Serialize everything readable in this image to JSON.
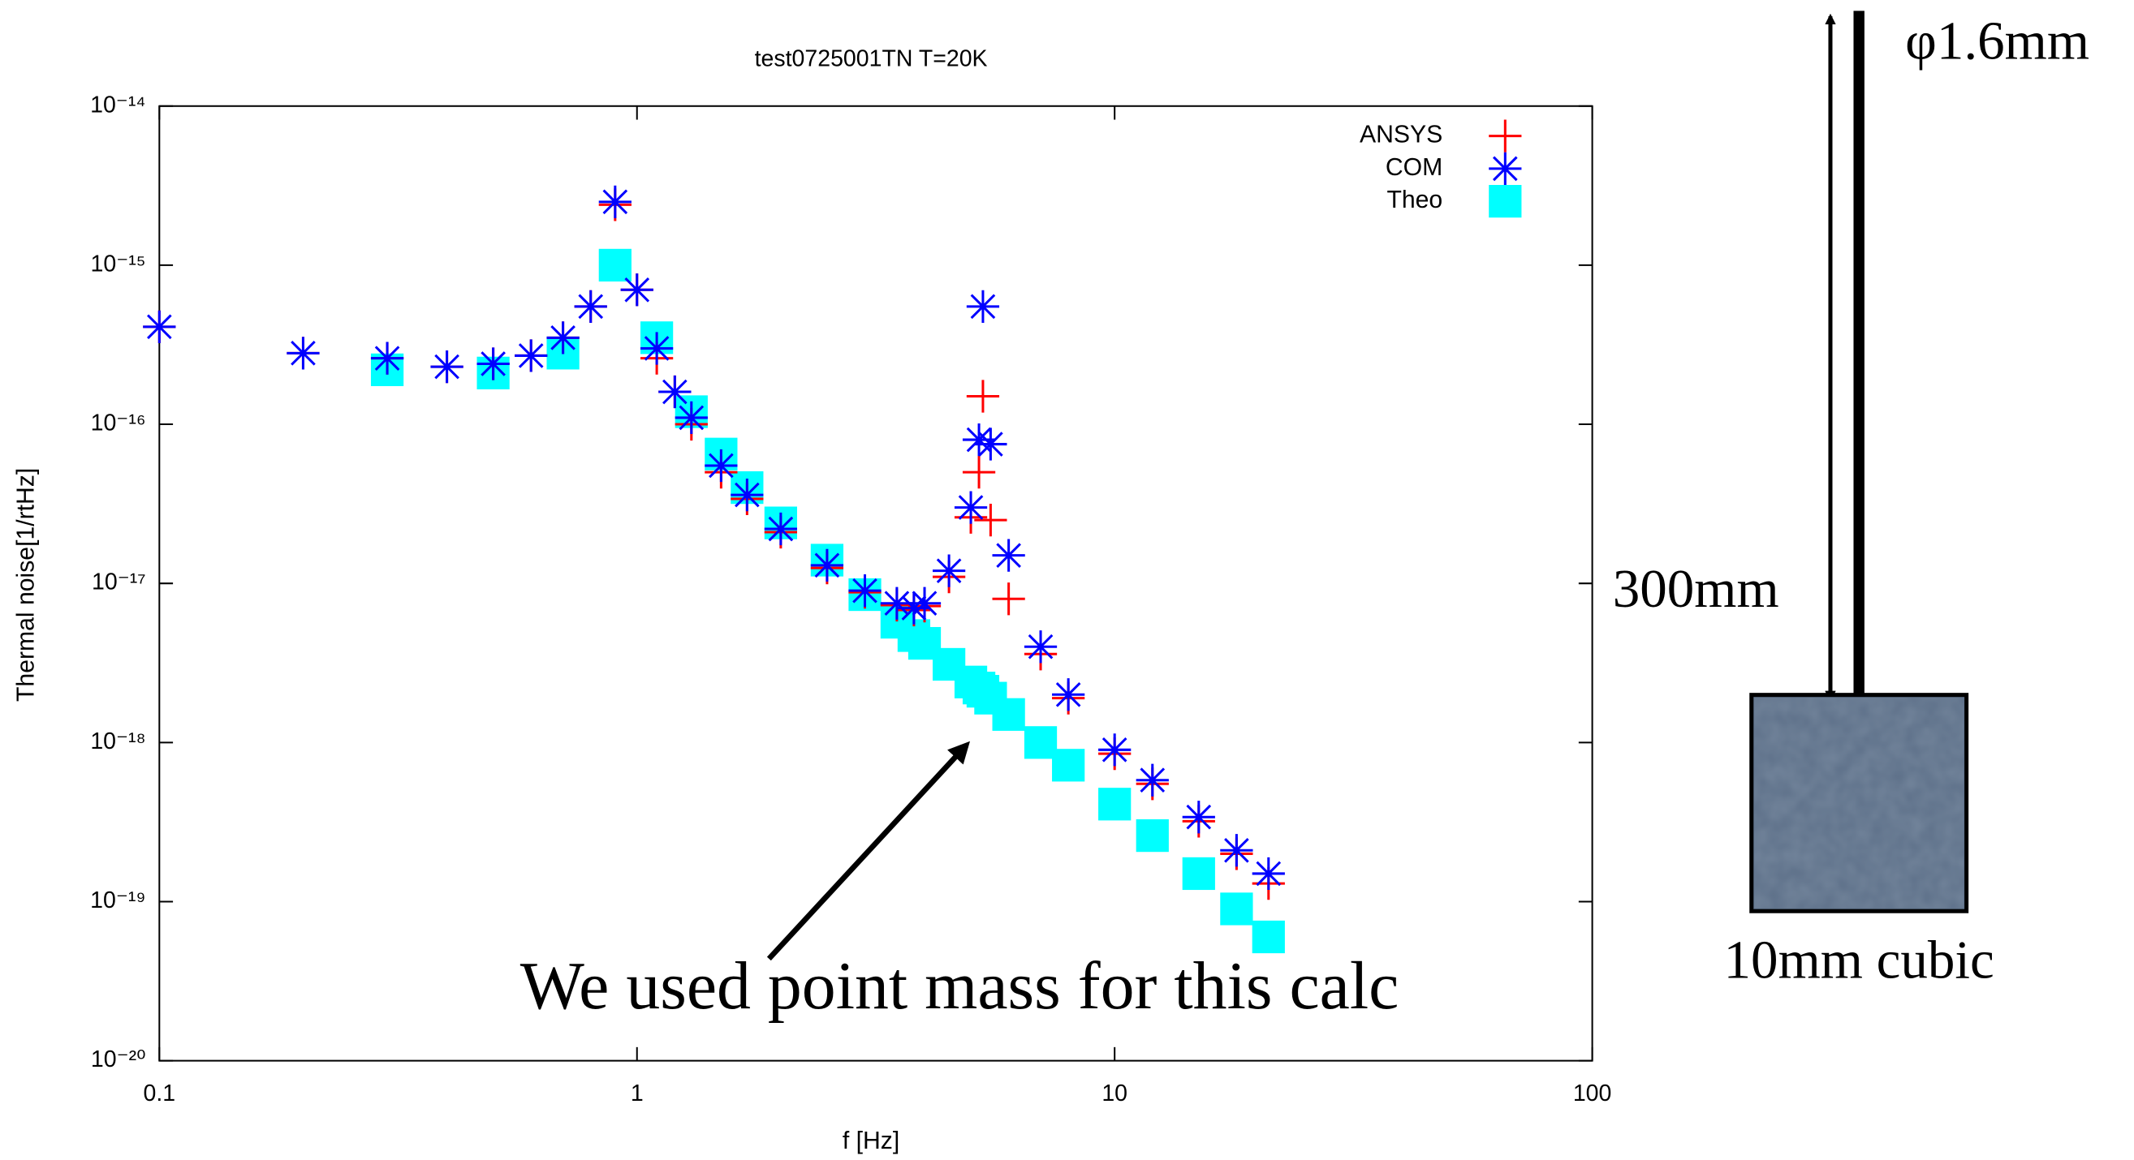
{
  "chart_data": {
    "type": "scatter",
    "title": "test0725001TN T=20K",
    "x_label": "f [Hz]",
    "y_label": "Thermal noise[1/rtHz]",
    "xscale": "log",
    "yscale": "log",
    "xlim": [
      0.1,
      100
    ],
    "ylim": [
      1e-20,
      1e-14
    ],
    "xticks": [
      0.1,
      1,
      10,
      100
    ],
    "yticks": [
      {
        "value": 1e-20,
        "label": "10⁻²⁰"
      },
      {
        "value": 1e-19,
        "label": "10⁻¹⁹"
      },
      {
        "value": 1e-18,
        "label": "10⁻¹⁸"
      },
      {
        "value": 1e-17,
        "label": "10⁻¹⁷"
      },
      {
        "value": 1e-16,
        "label": "10⁻¹⁶"
      },
      {
        "value": 1e-15,
        "label": "10⁻¹⁵"
      },
      {
        "value": 1e-14,
        "label": "10⁻¹⁴"
      }
    ],
    "legend": "top-right",
    "x": [
      0.1,
      0.2,
      0.3,
      0.4,
      0.5,
      0.6,
      0.7,
      0.8,
      0.9,
      1.0,
      1.1,
      1.2,
      1.3,
      1.5,
      1.7,
      2.0,
      2.5,
      3.0,
      3.5,
      3.8,
      4.0,
      4.5,
      5.0,
      5.2,
      5.3,
      5.5,
      6.0,
      7.0,
      8.0,
      10,
      12,
      15,
      18,
      21
    ],
    "series": [
      {
        "name": "ANSYS",
        "color": "#ff0000",
        "marker": "plus",
        "values": [
          4.1e-16,
          2.8e-16,
          2.6e-16,
          2.3e-16,
          2.4e-16,
          2.7e-16,
          3.5e-16,
          5.5e-16,
          2.4e-15,
          7e-16,
          2.6e-16,
          1.6e-16,
          1e-16,
          5e-17,
          3.4e-17,
          2.1e-17,
          1.25e-17,
          8.8e-18,
          7.3e-18,
          6.8e-18,
          7.2e-18,
          1.1e-17,
          2.6e-17,
          5e-17,
          1.5e-16,
          2.5e-17,
          8e-18,
          3.6e-18,
          1.9e-18,
          8.5e-19,
          5.5e-19,
          3.2e-19,
          2e-19,
          1.3e-19
        ]
      },
      {
        "name": "COM",
        "color": "#0000ff",
        "marker": "star",
        "values": [
          4.1e-16,
          2.8e-16,
          2.6e-16,
          2.3e-16,
          2.4e-16,
          2.7e-16,
          3.5e-16,
          5.5e-16,
          2.5e-15,
          7e-16,
          3e-16,
          1.6e-16,
          1.1e-16,
          5.5e-17,
          3.6e-17,
          2.2e-17,
          1.3e-17,
          9e-18,
          7.5e-18,
          7e-18,
          7.5e-18,
          1.2e-17,
          3e-17,
          8e-17,
          5.5e-16,
          7.5e-17,
          1.5e-17,
          4e-18,
          2e-18,
          9e-19,
          5.8e-19,
          3.4e-19,
          2.1e-19,
          1.5e-19
        ]
      },
      {
        "name": "Theo",
        "color": "#00ffff",
        "marker": "square",
        "values": [
          null,
          null,
          2.2e-16,
          null,
          2.1e-16,
          null,
          2.8e-16,
          null,
          1e-15,
          null,
          3.5e-16,
          null,
          1.2e-16,
          6.5e-17,
          4e-17,
          2.4e-17,
          1.4e-17,
          8.5e-18,
          5.7e-18,
          4.7e-18,
          4.2e-18,
          3.1e-18,
          2.4e-18,
          2.2e-18,
          2.1e-18,
          1.9e-18,
          1.5e-18,
          1e-18,
          7.2e-19,
          4.1e-19,
          2.6e-19,
          1.5e-19,
          9e-20,
          6e-20
        ]
      }
    ],
    "annotation": "We used point mass for this calc"
  },
  "diagram": {
    "wire_label": "φ1.6mm",
    "length_label": "300mm",
    "mass_label": "10mm cubic"
  }
}
